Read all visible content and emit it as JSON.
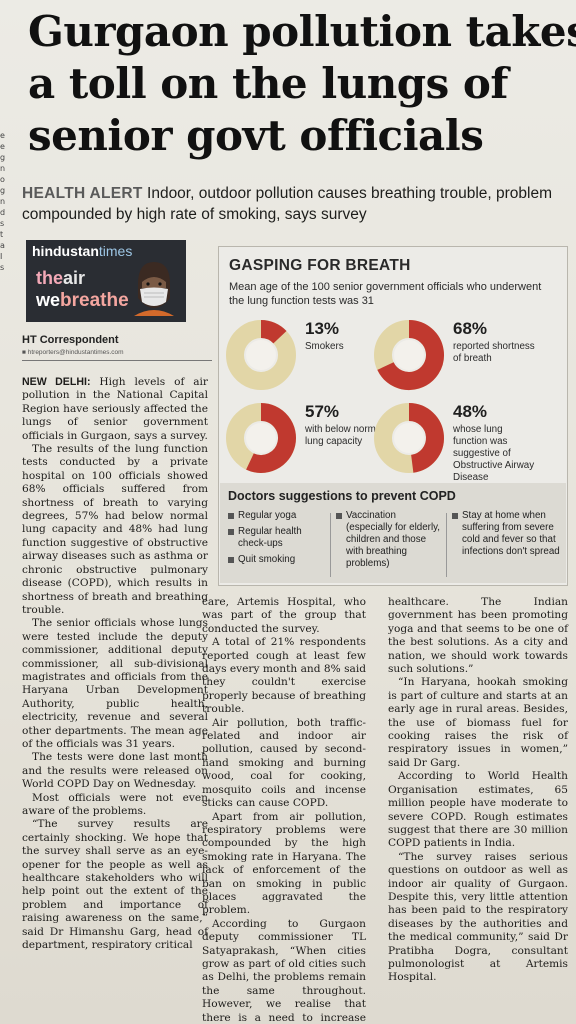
{
  "headline": {
    "line1": "Gurgaon pollution takes",
    "line2": "a toll on the lungs of",
    "line3": "senior govt officials"
  },
  "subhead": {
    "kicker": "HEALTH ALERT",
    "text": "Indoor, outdoor pollution causes breathing trouble, problem compounded by high rate of smoking, says survey"
  },
  "left_edge": [
    "e",
    "e",
    "g",
    "n",
    "o",
    "g",
    "n",
    "d",
    "s",
    "t",
    "a",
    "I",
    "s"
  ],
  "logo": {
    "brand1": "hindustan",
    "brand2": "times",
    "line1a": "the",
    "line1b": "air",
    "line2a": "we",
    "line2b": "breathe"
  },
  "byline": {
    "name": "HT Correspondent",
    "email": "htreporters@hindustantimes.com"
  },
  "infobox": {
    "title": "GASPING FOR BREATH",
    "subtitle": "Mean age of the 100 senior government officials who underwent the lung function tests was 31",
    "stats": [
      {
        "percent": "13%",
        "label": "Smokers",
        "value": 13
      },
      {
        "percent": "68%",
        "label": "reported shortness of breath",
        "value": 68
      },
      {
        "percent": "57%",
        "label": "with below normal lung capacity",
        "value": 57
      },
      {
        "percent": "48%",
        "label": "whose lung function was suggestive of Obstructive Airway Disease",
        "value": 48
      }
    ],
    "colors": {
      "filled": "#c0392f",
      "empty": "#e2d6a7"
    },
    "suggestions_title": "Doctors suggestions to prevent COPD",
    "suggestions": {
      "col1": [
        "Regular yoga",
        "Regular health check-ups",
        "Quit smoking"
      ],
      "col2": [
        "Vaccination (especially for elderly, children and those with breathing problems)"
      ],
      "col3": [
        "Stay at home when suffering from severe cold and fever so that infections don't spread"
      ]
    }
  },
  "body": {
    "col1": [
      {
        "lead": "NEW DELHI:",
        "text": " High levels of air pollution in the National Capital Region have seriously affected the lungs of senior government officials in Gurgaon, says a survey."
      },
      {
        "text": "The results of the lung function tests conducted by a private hospital on 100 officials showed 68% officials suffered from shortness of breath to varying degrees, 57% had below normal lung capacity and 48% had lung function suggestive of obstructive airway diseases such as asthma or chronic obstructive pulmonary disease (COPD), which results in shortness of breath and breathing trouble."
      },
      {
        "text": "The senior officials whose lungs were tested include the deputy commissioner, additional deputy commissioner, all sub-divisional magistrates and officials from the Haryana Urban Development Authority, public health, electricity, revenue and several other departments. The mean age of the officials was 31 years."
      },
      {
        "text": "The tests were done last month and the results were released on World COPD Day on Wednesday."
      },
      {
        "text": "Most officials were not even aware of the problems."
      },
      {
        "text": "“The survey results are certainly shocking. We hope that the survey shall serve as an eye-opener for the people as well as healthcare stakeholders who will help point out the extent of the problem and importance of raising awareness on the same,” said Dr Himanshu Garg, head of department, respiratory critical"
      }
    ],
    "col2": [
      {
        "text": "care, Artemis Hospital, who was part of the group that conducted the survey."
      },
      {
        "text": "A total of 21% respondents reported cough at least few days every month and 8% said they couldn't exercise properly because of breathing trouble."
      },
      {
        "text": "Air pollution, both traffic-related and indoor air pollution, caused by second-hand smoking and burning wood, coal for cooking, mosquito coils and incense sticks can cause COPD."
      },
      {
        "text": "Apart from air pollution, respiratory problems were compounded by the high smoking rate in Haryana. The lack of enforcement of the ban on smoking in public places aggravated the problem."
      },
      {
        "text": "According to Gurgaon deputy commissioner TL Satyaprakash, “When cities grow as part of old cities such as Delhi, the problems remain the same throughout. However, we realise that there is a need to increase attention on"
      }
    ],
    "col3": [
      {
        "text": "healthcare. The Indian government has been promoting yoga and that seems to be one of the best solutions. As a city and nation, we should work towards such solutions.”"
      },
      {
        "text": "“In Haryana, hookah smoking is part of culture and starts at an early age in rural areas. Besides, the use of biomass fuel for cooking raises the risk of respiratory issues in women,” said Dr Garg."
      },
      {
        "text": "According to World Health Organisation estimates, 65 million people have moderate to severe COPD. Rough estimates suggest that there are 30 million COPD patients in India."
      },
      {
        "text": "“The survey raises serious questions on outdoor as well as indoor air quality of Gurgaon. Despite this, very little attention has been paid to the respiratory diseases by the authorities and the medical community,” said Dr Pratibha Dogra, consultant pulmonologist at Artemis Hospital."
      }
    ]
  }
}
